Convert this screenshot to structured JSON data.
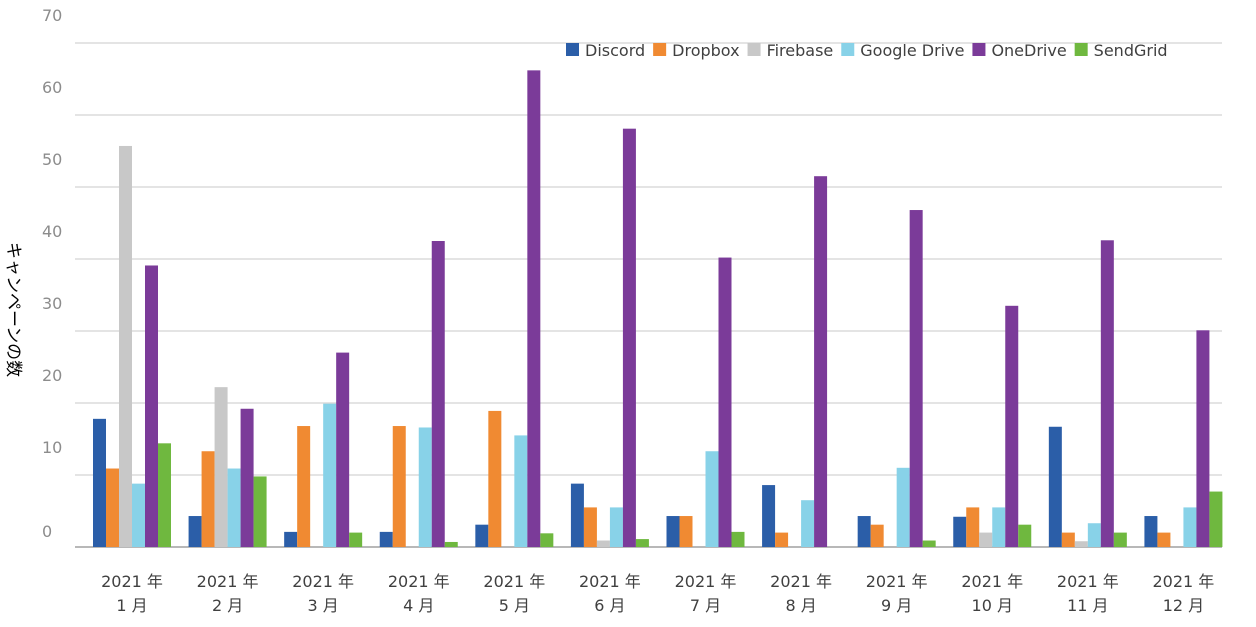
{
  "chart_data": {
    "type": "bar",
    "title": "",
    "xlabel": "",
    "ylabel": "キャンペーンの数",
    "ylim": [
      0,
      70
    ],
    "yticks": [
      0,
      10,
      20,
      30,
      40,
      50,
      60,
      70
    ],
    "grid": true,
    "legend_position": "top-right",
    "categories": [
      [
        "2021 年",
        "1 月"
      ],
      [
        "2021 年",
        "2 月"
      ],
      [
        "2021 年",
        "3 月"
      ],
      [
        "2021 年",
        "4 月"
      ],
      [
        "2021 年",
        "5 月"
      ],
      [
        "2021 年",
        "6 月"
      ],
      [
        "2021 年",
        "7 月"
      ],
      [
        "2021 年",
        "8 月"
      ],
      [
        "2021 年",
        "9 月"
      ],
      [
        "2021 年",
        "10 月"
      ],
      [
        "2021 年",
        "11 月"
      ],
      [
        "2021 年",
        "12 月"
      ]
    ],
    "series": [
      {
        "name": "Discord",
        "color": "#2b5ea8",
        "values": [
          17.8,
          4.3,
          2.1,
          2.1,
          3.1,
          8.8,
          4.3,
          8.6,
          4.3,
          4.2,
          16.7,
          4.3
        ]
      },
      {
        "name": "Dropbox",
        "color": "#f08a32",
        "values": [
          10.9,
          13.3,
          16.8,
          16.8,
          18.9,
          5.5,
          4.3,
          2.0,
          3.1,
          5.5,
          2.0,
          2.0
        ]
      },
      {
        "name": "Firebase",
        "color": "#c8c8c8",
        "values": [
          55.7,
          22.2,
          0,
          0,
          0,
          0.9,
          0,
          0,
          0,
          2.0,
          0.8,
          0
        ]
      },
      {
        "name": "Google Drive",
        "color": "#88d2e8",
        "values": [
          8.8,
          10.9,
          19.9,
          16.6,
          15.5,
          5.5,
          13.3,
          6.5,
          11.0,
          5.5,
          3.3,
          5.5
        ]
      },
      {
        "name": "OneDrive",
        "color": "#7b3b99",
        "values": [
          39.1,
          19.2,
          27.0,
          42.5,
          66.2,
          58.1,
          40.2,
          51.5,
          46.8,
          33.5,
          42.6,
          30.1
        ]
      },
      {
        "name": "SendGrid",
        "color": "#6fb83f",
        "values": [
          14.4,
          9.8,
          2.0,
          0.7,
          1.9,
          1.1,
          2.1,
          0,
          0.9,
          3.1,
          2.0,
          7.7
        ]
      }
    ]
  }
}
